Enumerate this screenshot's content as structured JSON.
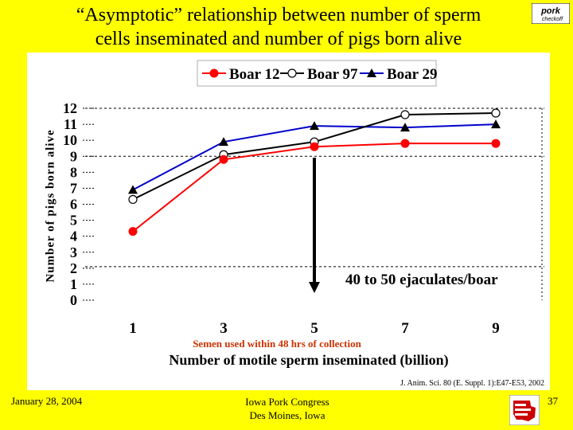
{
  "slide": {
    "title_line1": "“Asymptotic” relationship between number of sperm",
    "title_line2": "cells inseminated and number of pigs born alive",
    "logo_text": "pork checkoff",
    "footer_date": "January 28, 2004",
    "footer_event_line1": "Iowa Pork Congress",
    "footer_event_line2": "Des Moines, Iowa",
    "page_number": "37",
    "colors": {
      "background": "#ffff00",
      "panel": "#ffffff"
    }
  },
  "chart_data": {
    "type": "line",
    "x": [
      1,
      3,
      5,
      7,
      9
    ],
    "xlabel": "Number of motile sperm inseminated (billion)",
    "ylabel": "Number of pigs born alive",
    "xticks": [
      "1",
      "3",
      "5",
      "7",
      "9"
    ],
    "yticks": [
      "0",
      "1",
      "2",
      "3",
      "4",
      "5",
      "6",
      "7",
      "8",
      "9",
      "10",
      "11",
      "12"
    ],
    "ylim": [
      0,
      12
    ],
    "legend_position": "top",
    "series": [
      {
        "name": "Boar 12",
        "color": "#ff0000",
        "marker": "filled-circle",
        "values": [
          4.3,
          8.8,
          9.6,
          9.8,
          9.8
        ]
      },
      {
        "name": "Boar 97",
        "color": "#000000",
        "marker": "open-circle",
        "values": [
          6.3,
          9.1,
          9.9,
          11.6,
          11.7
        ]
      },
      {
        "name": "Boar 29",
        "color": "#0000cc",
        "marker": "triangle",
        "values": [
          6.9,
          9.9,
          10.9,
          10.8,
          11.0
        ]
      }
    ],
    "reference_lines": [
      9,
      12
    ],
    "annotation_arrow_x": 5,
    "annotation_text": "40 to 50 ejaculates/boar",
    "subnote": "Semen used within 48 hrs of collection",
    "citation": "J. Anim. Sci. 80 (E. Suppl. 1):E47-E53, 2002"
  }
}
